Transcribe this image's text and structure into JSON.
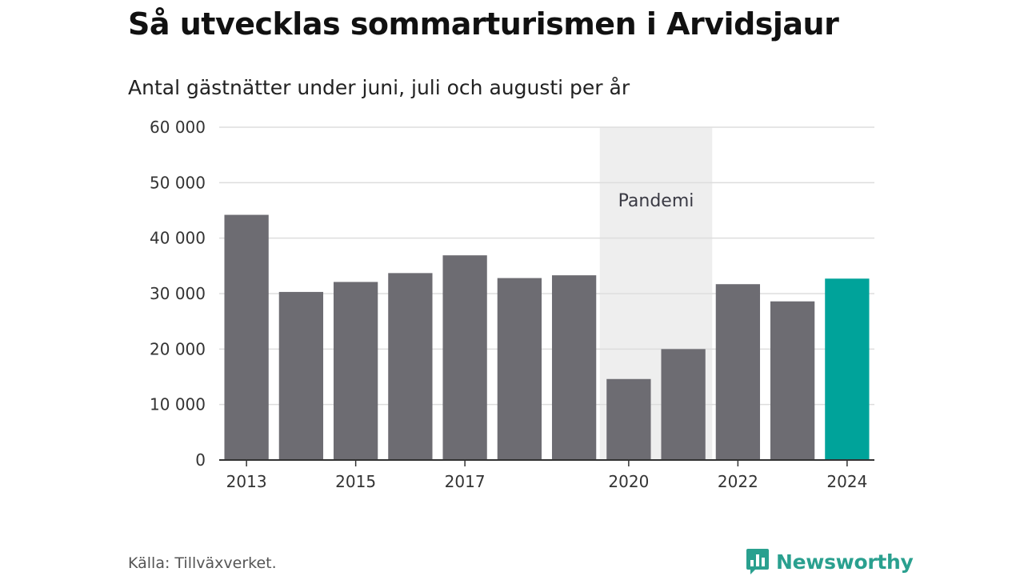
{
  "title": "Så utvecklas sommarturismen i Arvidsjaur",
  "subtitle": "Antal gästnätter under juni, juli och augusti per år",
  "source": "Källa: Tillväxverket.",
  "brand": {
    "name": "Newsworthy",
    "icon": "newsworthy-logo-icon",
    "color": "#2aa08f"
  },
  "chart_data": {
    "type": "bar",
    "categories": [
      "2013",
      "2014",
      "2015",
      "2016",
      "2017",
      "2018",
      "2019",
      "2020",
      "2021",
      "2022",
      "2023",
      "2024"
    ],
    "values": [
      44200,
      30300,
      32100,
      33700,
      36900,
      32800,
      33300,
      14600,
      20000,
      31700,
      28600,
      32700
    ],
    "x_tick_labels": [
      "2013",
      "",
      "2015",
      "",
      "2017",
      "",
      "",
      "2020",
      "",
      "2022",
      "",
      "2024"
    ],
    "y_ticks": [
      0,
      10000,
      20000,
      30000,
      40000,
      50000,
      60000
    ],
    "y_tick_labels": [
      "0",
      "10 000",
      "20 000",
      "30 000",
      "40 000",
      "50 000",
      "60 000"
    ],
    "ylim": [
      0,
      60000
    ],
    "grid": true,
    "bar_color": "#6d6c72",
    "highlight": {
      "category": "2024",
      "color": "#00a39a"
    },
    "annotation": {
      "label": "Pandemi",
      "from": "2020",
      "to": "2021",
      "color": "#eeeeee"
    }
  }
}
